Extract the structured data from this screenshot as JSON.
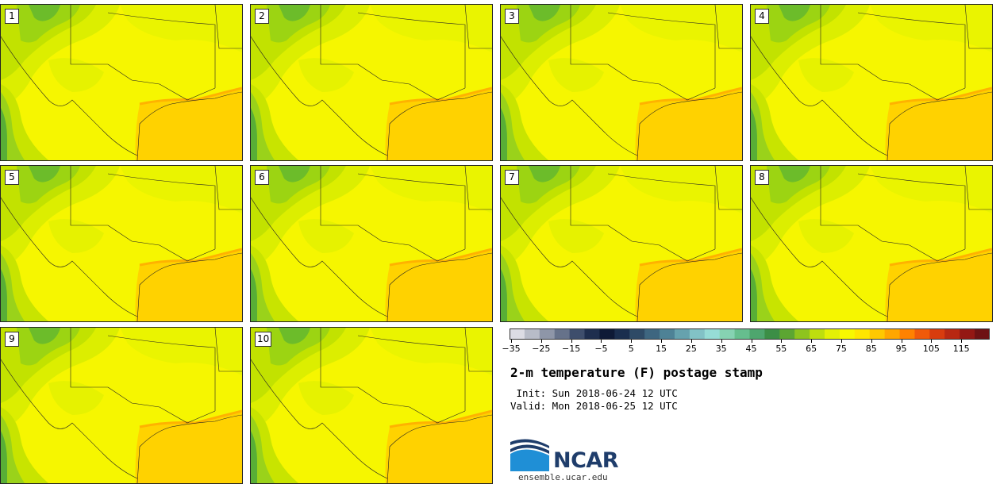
{
  "panels": [
    {
      "label": "1"
    },
    {
      "label": "2"
    },
    {
      "label": "3"
    },
    {
      "label": "4"
    },
    {
      "label": "5"
    },
    {
      "label": "6"
    },
    {
      "label": "7"
    },
    {
      "label": "8"
    },
    {
      "label": "9"
    },
    {
      "label": "10"
    }
  ],
  "colorbar": {
    "tick_labels": [
      "−35",
      "−25",
      "−15",
      "−5",
      "5",
      "15",
      "25",
      "35",
      "45",
      "55",
      "65",
      "75",
      "85",
      "95",
      "105",
      "115"
    ],
    "colors": [
      "#dcdce4",
      "#b8bcc8",
      "#8e96a8",
      "#66728a",
      "#3e4e6c",
      "#1e2e4e",
      "#0e1a36",
      "#1a2e4e",
      "#2e4a66",
      "#3e6680",
      "#4e8296",
      "#66a2ae",
      "#82c2c6",
      "#96dcd6",
      "#86d2b2",
      "#66be8e",
      "#4ea66e",
      "#3c8e46",
      "#5ca632",
      "#8ec41e",
      "#bede0e",
      "#e4f006",
      "#f8f800",
      "#ffe600",
      "#ffc800",
      "#ffa600",
      "#ff8200",
      "#f05a0a",
      "#d83c0e",
      "#b82812",
      "#941814",
      "#6e1214"
    ]
  },
  "title": "2-m temperature (F) postage stamp",
  "init_line": " Init: Sun 2018-06-24 12 UTC",
  "valid_line": "Valid: Mon 2018-06-25 12 UTC",
  "logo": {
    "text": "NCAR",
    "site": "ensemble.ucar.edu"
  }
}
